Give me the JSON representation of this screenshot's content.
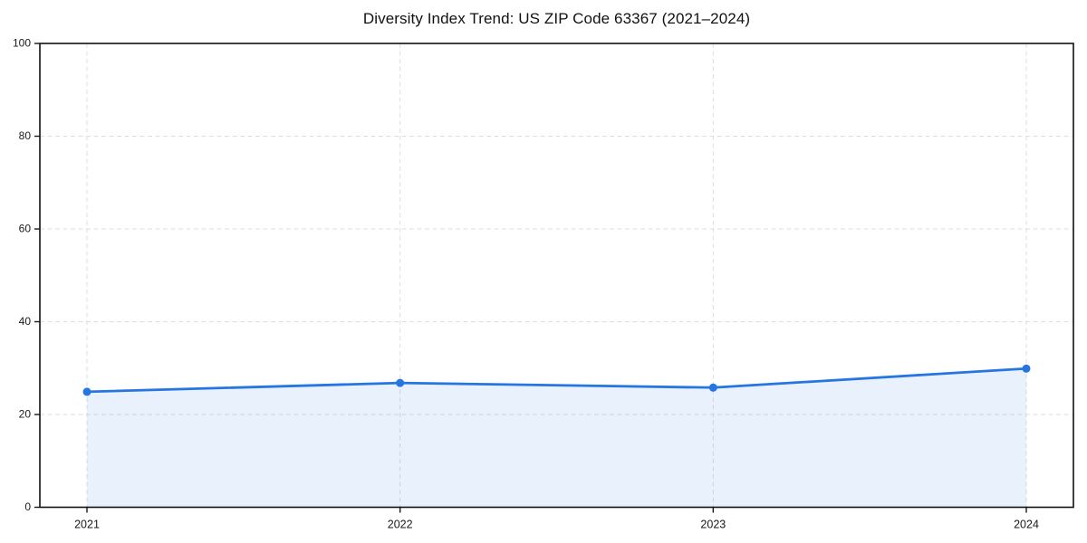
{
  "chart_data": {
    "type": "area",
    "title": "Diversity Index Trend: US ZIP Code 63367 (2021–2024)",
    "x": [
      2021,
      2022,
      2023,
      2024
    ],
    "xticks": [
      "2021",
      "2022",
      "2023",
      "2024"
    ],
    "series": [
      {
        "name": "Diversity Index",
        "values": [
          24.9,
          26.8,
          25.8,
          29.9
        ]
      }
    ],
    "xlabel": "",
    "ylabel": "",
    "ylim": [
      0,
      100
    ],
    "yticks": [
      0,
      20,
      40,
      60,
      80,
      100
    ],
    "grid": true,
    "grid_style": "dashed",
    "legend_position": "none",
    "line_color": "#2575e2",
    "marker_color": "#2575e2",
    "fill_color": "rgba(37,117,226,0.10)",
    "spine_color": "#111111",
    "background_color": "#ffffff"
  }
}
